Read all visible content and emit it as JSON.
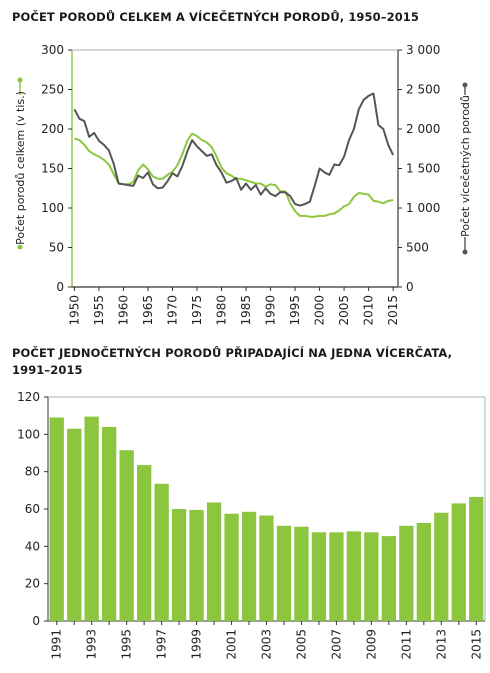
{
  "titles": {
    "chart1": "POČET PORODŮ CELKEM A VÍCEČETNÝCH PORODŮ, 1950–2015",
    "chart2": "POČET JEDNOČETNÝCH PORODŮ PŘIPADAJÍCÍ NA JEDNA VÍCERČATA, 1991–2015"
  },
  "colors": {
    "green": "#8cc63f",
    "dark": "#555555",
    "bar": "#8cc63f",
    "axis": "#333333"
  },
  "chart_data": [
    {
      "type": "line",
      "title": "POČET PORODŮ CELKEM A VÍCEČETNÝCH PORODŮ, 1950–2015",
      "xlabel": "",
      "ylabel_left": "Počet porodů celkem (v tis.)",
      "ylabel_right": "Počet vícečetných porodů",
      "ylim_left": [
        0,
        300
      ],
      "ylim_right": [
        0,
        3000
      ],
      "yticks_left": [
        "0",
        "50",
        "100",
        "150",
        "200",
        "250",
        "300"
      ],
      "yticks_right": [
        "0",
        "500",
        "1 000",
        "1 500",
        "2 000",
        "2 500",
        "3 000"
      ],
      "xticks": [
        "1950",
        "1955",
        "1960",
        "1965",
        "1970",
        "1975",
        "1980",
        "1985",
        "1990",
        "1995",
        "2000",
        "2005",
        "2010",
        "2015"
      ],
      "series": [
        {
          "name": "Počet porodů celkem (v tis.)",
          "axis": "left",
          "color": "#8cc63f",
          "x": [
            1950,
            1951,
            1952,
            1953,
            1954,
            1955,
            1956,
            1957,
            1958,
            1959,
            1960,
            1961,
            1962,
            1963,
            1964,
            1965,
            1966,
            1967,
            1968,
            1969,
            1970,
            1971,
            1972,
            1973,
            1974,
            1975,
            1976,
            1977,
            1978,
            1979,
            1980,
            1981,
            1982,
            1983,
            1984,
            1985,
            1986,
            1987,
            1988,
            1989,
            1990,
            1991,
            1992,
            1993,
            1994,
            1995,
            1996,
            1997,
            1998,
            1999,
            2000,
            2001,
            2002,
            2003,
            2004,
            2005,
            2006,
            2007,
            2008,
            2009,
            2010,
            2011,
            2012,
            2013,
            2014,
            2015
          ],
          "y": [
            188,
            186,
            180,
            172,
            168,
            165,
            161,
            155,
            143,
            131,
            130,
            130,
            133,
            148,
            155,
            149,
            140,
            137,
            137,
            142,
            146,
            154,
            168,
            185,
            194,
            191,
            186,
            183,
            177,
            165,
            151,
            144,
            141,
            137,
            137,
            135,
            133,
            131,
            131,
            127,
            130,
            129,
            121,
            121,
            106,
            96,
            90,
            90,
            89,
            89,
            90,
            90,
            92,
            93,
            97,
            102,
            105,
            114,
            119,
            118,
            117,
            109,
            108,
            106,
            109,
            110
          ]
        },
        {
          "name": "Počet vícečetných porodů",
          "axis": "right",
          "color": "#555555",
          "x": [
            1950,
            1951,
            1952,
            1953,
            1954,
            1955,
            1956,
            1957,
            1958,
            1959,
            1960,
            1961,
            1962,
            1963,
            1964,
            1965,
            1966,
            1967,
            1968,
            1969,
            1970,
            1971,
            1972,
            1973,
            1974,
            1975,
            1976,
            1977,
            1978,
            1979,
            1980,
            1981,
            1982,
            1983,
            1984,
            1985,
            1986,
            1987,
            1988,
            1989,
            1990,
            1991,
            1992,
            1993,
            1994,
            1995,
            1996,
            1997,
            1998,
            1999,
            2000,
            2001,
            2002,
            2003,
            2004,
            2005,
            2006,
            2007,
            2008,
            2009,
            2010,
            2011,
            2012,
            2013,
            2014,
            2015
          ],
          "y": [
            2250,
            2130,
            2100,
            1900,
            1950,
            1850,
            1800,
            1730,
            1560,
            1310,
            1300,
            1290,
            1280,
            1410,
            1380,
            1450,
            1300,
            1250,
            1260,
            1340,
            1440,
            1400,
            1530,
            1710,
            1860,
            1780,
            1720,
            1660,
            1680,
            1540,
            1450,
            1320,
            1340,
            1380,
            1230,
            1310,
            1230,
            1290,
            1170,
            1250,
            1180,
            1150,
            1200,
            1200,
            1150,
            1050,
            1030,
            1050,
            1080,
            1280,
            1500,
            1450,
            1420,
            1550,
            1540,
            1650,
            1860,
            2000,
            2250,
            2370,
            2420,
            2450,
            2050,
            2000,
            1800,
            1670
          ]
        }
      ]
    },
    {
      "type": "bar",
      "title": "POČET JEDNOČETNÝCH PORODŮ PŘIPADAJÍCÍ NA JEDNA VÍCERČATA, 1991–2015",
      "xlabel": "",
      "ylabel": "",
      "ylim": [
        0,
        120
      ],
      "yticks": [
        "0",
        "20",
        "40",
        "60",
        "80",
        "100",
        "120"
      ],
      "categories": [
        "1991",
        "1992",
        "1993",
        "1994",
        "1995",
        "1996",
        "1997",
        "1998",
        "1999",
        "2000",
        "2001",
        "2002",
        "2003",
        "2004",
        "2005",
        "2006",
        "2007",
        "2008",
        "2009",
        "2010",
        "2011",
        "2012",
        "2013",
        "2014",
        "2015"
      ],
      "xtick_labels": [
        "1991",
        "1993",
        "1995",
        "1997",
        "1999",
        "2001",
        "2003",
        "2005",
        "2007",
        "2009",
        "2011",
        "2013",
        "2015"
      ],
      "values": [
        109,
        103,
        109.5,
        104,
        91.5,
        83.5,
        73.5,
        60,
        59.5,
        63.5,
        57.5,
        58.5,
        56.5,
        51,
        50.5,
        47.5,
        47.5,
        48,
        47.5,
        45.5,
        51,
        52.5,
        58,
        63,
        66.5
      ]
    }
  ]
}
